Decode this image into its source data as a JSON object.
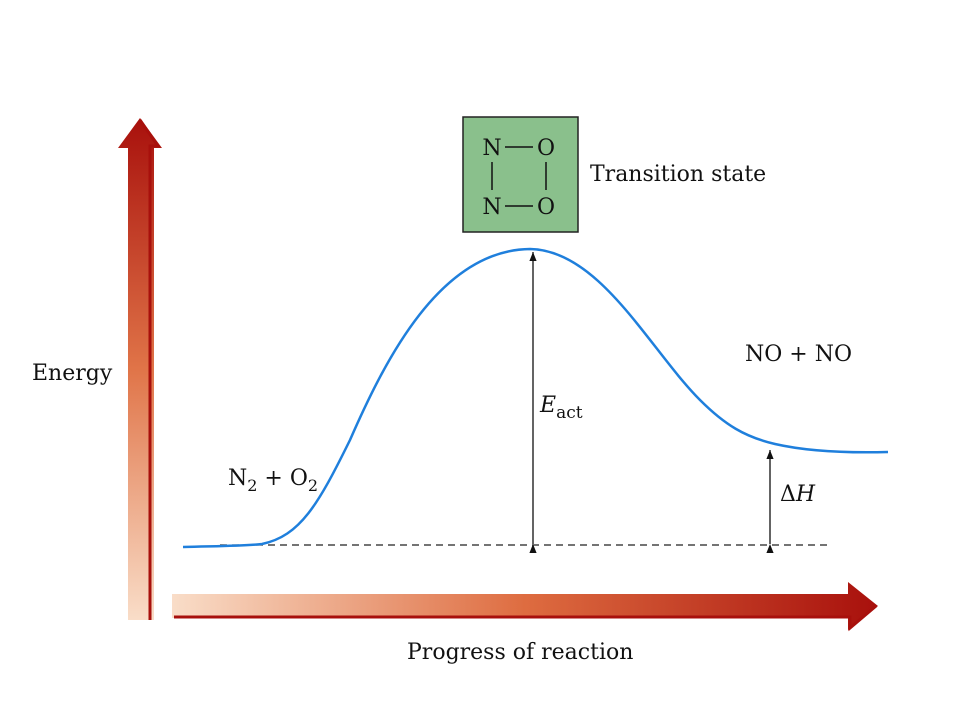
{
  "colors": {
    "curve": "#1f7fdc",
    "transition_box_fill": "#8ac08c",
    "arrow_dark": "#a8100c",
    "arrow_light": "#f9ddc8"
  },
  "labels": {
    "energy_axis": "Energy",
    "progress_axis": "Progress of reaction",
    "transition_state": "Transition state",
    "reactants": {
      "n": "N",
      "n_sub": "2",
      "plus": " + O",
      "o_sub": "2"
    },
    "products": "NO + NO",
    "activation_energy": {
      "symbol": "E",
      "subscript": "act"
    },
    "enthalpy": {
      "delta": "Δ",
      "symbol": "H"
    }
  },
  "transition_structure": {
    "top_left": "N",
    "top_right": "O",
    "bottom_left": "N",
    "bottom_right": "O"
  }
}
